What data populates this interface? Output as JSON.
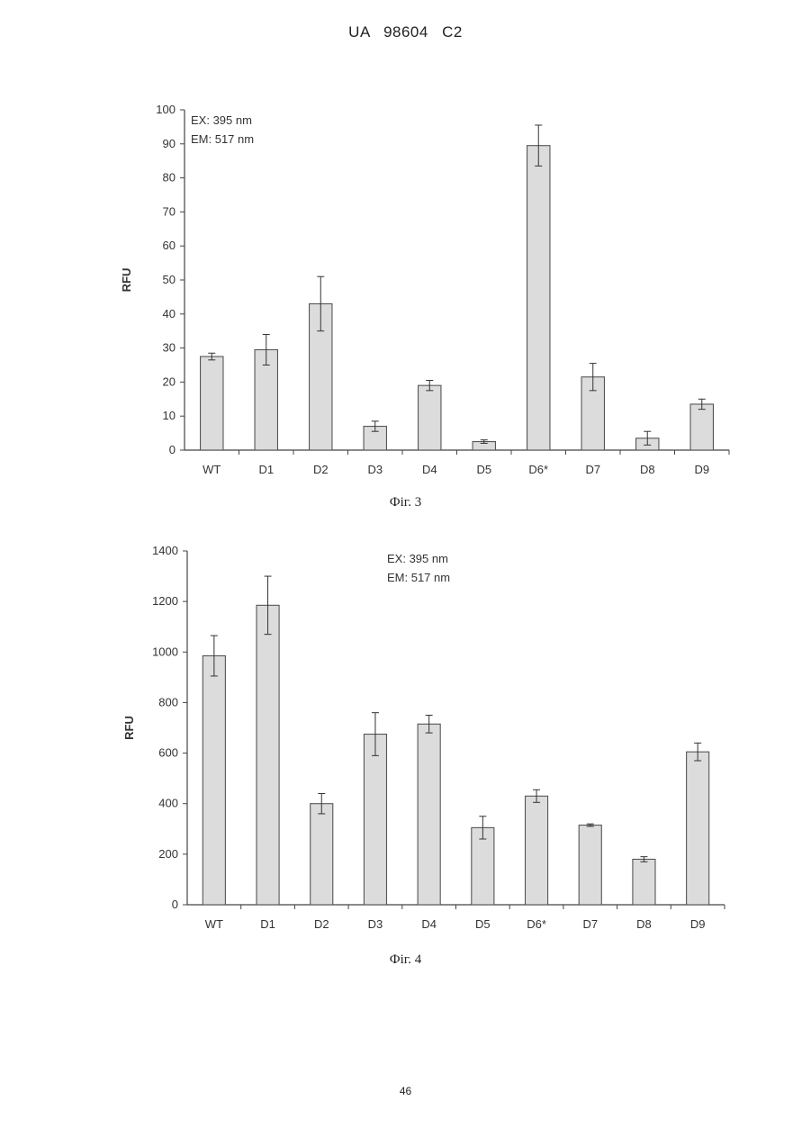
{
  "header": {
    "text": "UA   98604   C2"
  },
  "captions": [
    "Фіг. 3",
    "Фіг. 4"
  ],
  "page_number": "46",
  "chart_data": [
    {
      "type": "bar",
      "title": "",
      "ylabel": "RFU",
      "xlabel": "",
      "annotations": [
        "EX: 395 nm",
        "EM: 517 nm"
      ],
      "annotation_placement": "top-left",
      "categories": [
        "WT",
        "D1",
        "D2",
        "D3",
        "D4",
        "D5",
        "D6*",
        "D7",
        "D8",
        "D9"
      ],
      "values": [
        27.5,
        29.5,
        43,
        7,
        19,
        2.5,
        89.5,
        21.5,
        3.5,
        13.5
      ],
      "errors": [
        1,
        4.5,
        8,
        1.5,
        1.5,
        0.5,
        6,
        4,
        2,
        1.5
      ],
      "ylim": [
        0,
        100
      ],
      "yticks": [
        0,
        10,
        20,
        30,
        40,
        50,
        60,
        70,
        80,
        90,
        100
      ],
      "grid": false,
      "bar_color": "#dcdcdc"
    },
    {
      "type": "bar",
      "title": "",
      "ylabel": "RFU",
      "xlabel": "",
      "annotations": [
        "EX: 395 nm",
        "EM: 517 nm"
      ],
      "annotation_placement": "top-center",
      "categories": [
        "WT",
        "D1",
        "D2",
        "D3",
        "D4",
        "D5",
        "D6*",
        "D7",
        "D8",
        "D9"
      ],
      "values": [
        985,
        1185,
        400,
        675,
        715,
        305,
        430,
        315,
        180,
        605
      ],
      "errors": [
        80,
        115,
        40,
        85,
        35,
        45,
        25,
        5,
        10,
        35
      ],
      "ylim": [
        0,
        1400
      ],
      "yticks": [
        0,
        200,
        400,
        600,
        800,
        1000,
        1200,
        1400
      ],
      "grid": false,
      "bar_color": "#dcdcdc"
    }
  ]
}
